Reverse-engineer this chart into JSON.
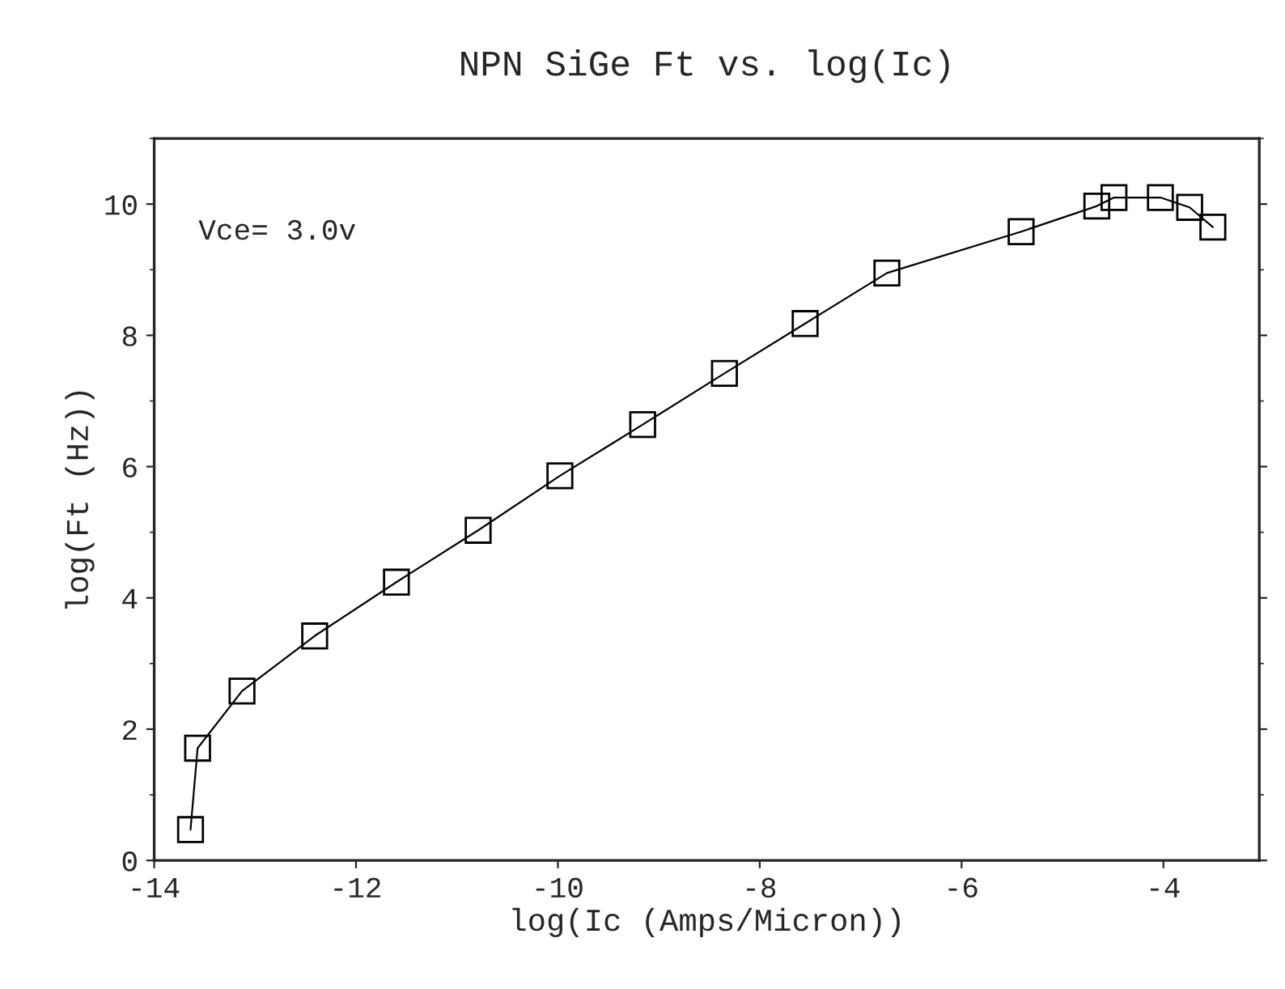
{
  "chart_data": {
    "type": "line",
    "title": "NPN SiGe Ft vs. log(Ic)",
    "xlabel": "log(Ic (Amps/Micron))",
    "ylabel": "log(Ft (Hz))",
    "annotations": [
      "Vce= 3.0v"
    ],
    "x": [
      -13.64,
      -13.57,
      -13.13,
      -12.41,
      -11.6,
      -10.79,
      -9.98,
      -9.16,
      -8.35,
      -7.55,
      -6.74,
      -5.41,
      -4.66,
      -4.49,
      -4.03,
      -3.74,
      -3.51
    ],
    "series": [
      {
        "color": "#000000",
        "values": [
          0.47,
          1.71,
          2.58,
          3.42,
          4.24,
          5.03,
          5.86,
          6.64,
          7.42,
          8.18,
          8.95,
          9.58,
          9.97,
          10.1,
          10.1,
          9.95,
          9.65
        ]
      }
    ],
    "xlim": [
      -14,
      -3.05
    ],
    "ylim": [
      0,
      11
    ],
    "xticks": [
      -14,
      -12,
      -10,
      -8,
      -6,
      -4
    ],
    "yticks": [
      0,
      2,
      4,
      6,
      8,
      10
    ],
    "marker": "square",
    "line_style": "solid",
    "grid": false,
    "legend": false
  }
}
